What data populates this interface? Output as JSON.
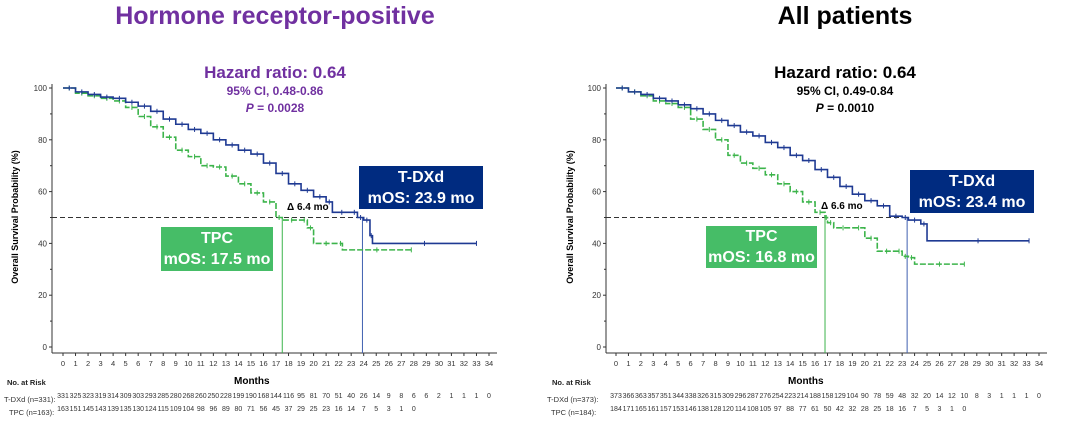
{
  "colors": {
    "purple": "#7030a0",
    "tdxd": "#1f3a93",
    "tdxd_box": "#002b80",
    "tpc": "#3cb44b",
    "tpc_box": "#46bd67"
  },
  "chart_data": [
    {
      "type": "line",
      "title": "Hormone receptor-positive",
      "title_color": "#7030a0",
      "xlabel": "Months",
      "ylabel": "Overall Survival Probability (%)",
      "xlim": [
        0,
        34
      ],
      "ylim": [
        0,
        100
      ],
      "xticks": [
        "0",
        "1",
        "2",
        "3",
        "4",
        "5",
        "6",
        "7",
        "8",
        "9",
        "10",
        "11",
        "12",
        "13",
        "14",
        "15",
        "16",
        "17",
        "18",
        "19",
        "20",
        "21",
        "22",
        "23",
        "24",
        "25",
        "26",
        "27",
        "28",
        "29",
        "30",
        "31",
        "32",
        "33",
        "34"
      ],
      "yticks": [
        "0",
        "20",
        "40",
        "60",
        "80",
        "100"
      ],
      "grid": false,
      "hazard": {
        "label": "Hazard ratio",
        "value": "0.64",
        "ci": "95% CI, 0.48-0.86",
        "p_label": "P",
        "p_value": "= 0.0028"
      },
      "delta": "Δ 6.4 mo",
      "series": [
        {
          "name": "T-DXd",
          "box_line2": "mOS: 23.9 mo",
          "median": 23.9,
          "color": "#1f3a93",
          "points": [
            [
              0,
              100
            ],
            [
              1,
              98.5
            ],
            [
              2,
              97.5
            ],
            [
              3,
              96.5
            ],
            [
              4,
              96
            ],
            [
              5,
              94.5
            ],
            [
              6,
              93
            ],
            [
              7,
              91
            ],
            [
              8,
              88
            ],
            [
              9,
              86
            ],
            [
              10,
              84
            ],
            [
              11,
              82.5
            ],
            [
              12,
              80
            ],
            [
              13,
              78
            ],
            [
              14,
              76
            ],
            [
              15,
              74.5
            ],
            [
              16,
              71
            ],
            [
              17,
              67
            ],
            [
              18,
              63
            ],
            [
              19,
              60.5
            ],
            [
              20,
              58
            ],
            [
              21,
              56
            ],
            [
              21.5,
              52
            ],
            [
              23,
              52
            ],
            [
              23.5,
              50
            ],
            [
              24,
              49
            ],
            [
              24.5,
              43
            ],
            [
              24.7,
              40
            ],
            [
              33,
              40
            ]
          ],
          "risk_label": "T-DXd (n=331):",
          "at_risk": [
            "331",
            "325",
            "323",
            "319",
            "314",
            "309",
            "303",
            "293",
            "285",
            "280",
            "268",
            "260",
            "250",
            "228",
            "199",
            "190",
            "168",
            "144",
            "116",
            "95",
            "81",
            "70",
            "51",
            "40",
            "26",
            "14",
            "9",
            "8",
            "6",
            "6",
            "2",
            "1",
            "1",
            "1",
            "0"
          ]
        },
        {
          "name": "TPC",
          "box_line2": "mOS: 17.5 mo",
          "median": 17.5,
          "color": "#3cb44b",
          "points": [
            [
              0,
              100
            ],
            [
              1,
              98
            ],
            [
              2,
              97
            ],
            [
              3,
              96
            ],
            [
              4,
              95
            ],
            [
              5,
              92.5
            ],
            [
              6,
              89
            ],
            [
              7,
              85
            ],
            [
              8,
              81
            ],
            [
              9,
              76
            ],
            [
              10,
              73.5
            ],
            [
              11,
              70
            ],
            [
              12,
              69.5
            ],
            [
              13,
              66
            ],
            [
              14,
              63
            ],
            [
              15,
              59.5
            ],
            [
              16,
              56
            ],
            [
              17,
              50
            ],
            [
              17.5,
              49
            ],
            [
              19,
              49
            ],
            [
              19.5,
              46
            ],
            [
              20,
              40
            ],
            [
              22,
              40
            ],
            [
              22.3,
              37.5
            ],
            [
              27.8,
              37.5
            ]
          ],
          "risk_label": "TPC (n=163):",
          "at_risk": [
            "163",
            "151",
            "145",
            "143",
            "139",
            "135",
            "130",
            "124",
            "115",
            "109",
            "104",
            "98",
            "96",
            "89",
            "80",
            "71",
            "56",
            "45",
            "37",
            "29",
            "25",
            "23",
            "16",
            "14",
            "7",
            "5",
            "3",
            "1",
            "0"
          ]
        }
      ],
      "risk_title": "No. at Risk"
    },
    {
      "type": "line",
      "title": "All patients",
      "title_color": "#000000",
      "xlabel": "Months",
      "ylabel": "Overall Survival Probability (%)",
      "xlim": [
        0,
        34
      ],
      "ylim": [
        0,
        100
      ],
      "xticks": [
        "0",
        "1",
        "2",
        "3",
        "4",
        "5",
        "6",
        "7",
        "8",
        "9",
        "10",
        "11",
        "12",
        "13",
        "14",
        "15",
        "16",
        "17",
        "18",
        "19",
        "20",
        "21",
        "22",
        "23",
        "24",
        "25",
        "26",
        "27",
        "28",
        "29",
        "30",
        "31",
        "32",
        "33",
        "34"
      ],
      "yticks": [
        "0",
        "20",
        "40",
        "60",
        "80",
        "100"
      ],
      "grid": false,
      "hazard": {
        "label": "Hazard ratio",
        "value": "0.64",
        "ci": "95% CI, 0.49-0.84",
        "p_label": "P",
        "p_value": "= 0.0010"
      },
      "delta": "Δ 6.6 mo",
      "series": [
        {
          "name": "T-DXd",
          "box_line2": "mOS: 23.4 mo",
          "median": 23.4,
          "color": "#1f3a93",
          "points": [
            [
              0,
              100
            ],
            [
              1,
              98.5
            ],
            [
              2,
              97.5
            ],
            [
              3,
              96
            ],
            [
              4,
              95
            ],
            [
              5,
              93.5
            ],
            [
              6,
              92
            ],
            [
              7,
              90
            ],
            [
              8,
              87.5
            ],
            [
              9,
              85.5
            ],
            [
              10,
              83
            ],
            [
              11,
              81.5
            ],
            [
              12,
              79
            ],
            [
              13,
              77
            ],
            [
              14,
              74
            ],
            [
              15,
              72
            ],
            [
              16,
              68.5
            ],
            [
              17,
              65.5
            ],
            [
              18,
              62
            ],
            [
              19,
              59
            ],
            [
              20,
              56.5
            ],
            [
              21,
              54.5
            ],
            [
              22,
              50.5
            ],
            [
              23,
              50
            ],
            [
              23.5,
              49
            ],
            [
              24.5,
              47.5
            ],
            [
              25,
              41
            ],
            [
              33.2,
              41
            ]
          ],
          "risk_label": "T-DXd (n=373):",
          "at_risk": [
            "373",
            "366",
            "363",
            "357",
            "351",
            "344",
            "338",
            "326",
            "315",
            "309",
            "296",
            "287",
            "276",
            "254",
            "223",
            "214",
            "188",
            "158",
            "129",
            "104",
            "90",
            "78",
            "59",
            "48",
            "32",
            "20",
            "14",
            "12",
            "10",
            "8",
            "3",
            "1",
            "1",
            "1",
            "0"
          ]
        },
        {
          "name": "TPC",
          "box_line2": "mOS: 16.8 mo",
          "median": 16.8,
          "color": "#3cb44b",
          "points": [
            [
              0,
              100
            ],
            [
              1,
              98.5
            ],
            [
              2,
              97
            ],
            [
              3,
              95
            ],
            [
              4,
              94
            ],
            [
              5,
              92.5
            ],
            [
              6,
              88
            ],
            [
              7,
              84
            ],
            [
              8,
              80
            ],
            [
              9,
              74
            ],
            [
              10,
              71
            ],
            [
              11,
              69
            ],
            [
              12,
              66.5
            ],
            [
              13,
              63
            ],
            [
              14,
              60
            ],
            [
              15,
              56
            ],
            [
              16,
              52
            ],
            [
              16.8,
              50
            ],
            [
              17,
              48
            ],
            [
              17.5,
              46
            ],
            [
              19,
              46
            ],
            [
              20,
              42
            ],
            [
              21,
              37
            ],
            [
              22.5,
              37
            ],
            [
              23,
              35
            ],
            [
              23.5,
              34.5
            ],
            [
              24,
              32
            ],
            [
              28,
              32
            ]
          ],
          "risk_label": "TPC (n=184):",
          "at_risk": [
            "184",
            "171",
            "165",
            "161",
            "157",
            "153",
            "146",
            "138",
            "128",
            "120",
            "114",
            "108",
            "105",
            "97",
            "88",
            "77",
            "61",
            "50",
            "42",
            "32",
            "28",
            "25",
            "18",
            "16",
            "7",
            "5",
            "3",
            "1",
            "0"
          ]
        }
      ],
      "risk_title": "No. at Risk"
    }
  ]
}
